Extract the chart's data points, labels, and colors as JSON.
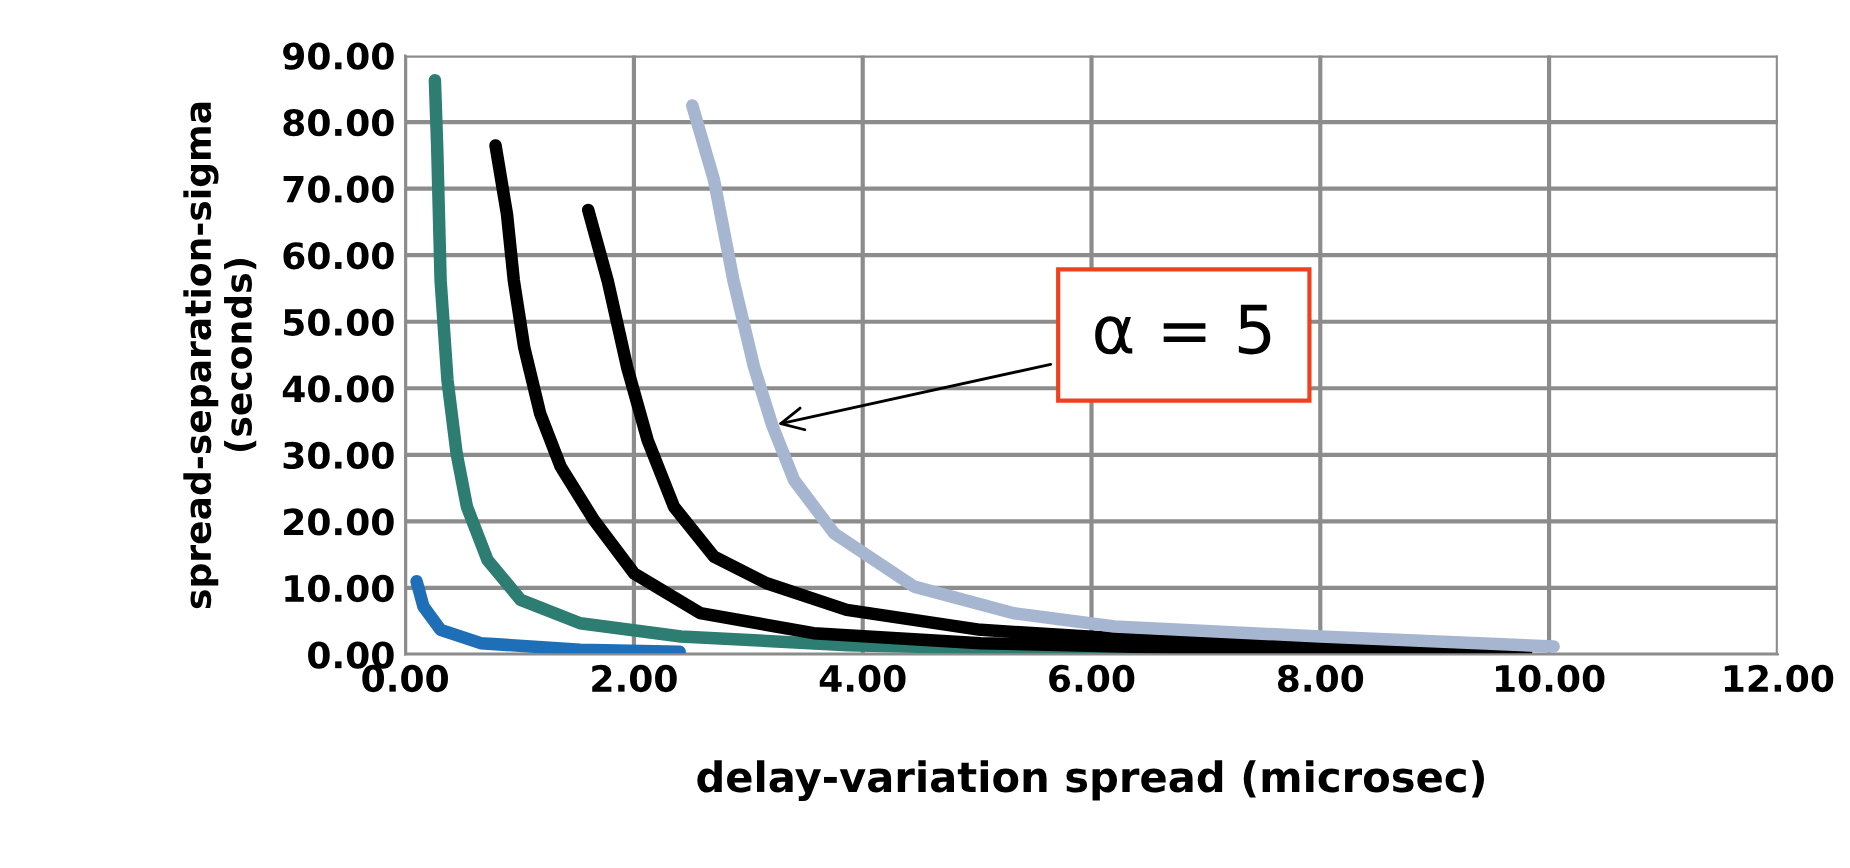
{
  "chart_data": {
    "type": "line",
    "xlabel": "delay-variation spread (microsec)",
    "ylabel": "spread-separation-sigma\n(seconds)",
    "xlim": [
      0,
      12
    ],
    "ylim": [
      0,
      90
    ],
    "xticks": [
      {
        "value": 0,
        "label": "0.00"
      },
      {
        "value": 2,
        "label": "2.00"
      },
      {
        "value": 4,
        "label": "4.00"
      },
      {
        "value": 6,
        "label": "6.00"
      },
      {
        "value": 8,
        "label": "8.00"
      },
      {
        "value": 10,
        "label": "10.00"
      },
      {
        "value": 12,
        "label": "12.00"
      }
    ],
    "yticks": [
      {
        "value": 0,
        "label": "0.00"
      },
      {
        "value": 10,
        "label": "10.00"
      },
      {
        "value": 20,
        "label": "20.00"
      },
      {
        "value": 30,
        "label": "30.00"
      },
      {
        "value": 40,
        "label": "40.00"
      },
      {
        "value": 50,
        "label": "50.00"
      },
      {
        "value": 60,
        "label": "60.00"
      },
      {
        "value": 70,
        "label": "70.00"
      },
      {
        "value": 80,
        "label": "80.00"
      },
      {
        "value": 90,
        "label": "90.00"
      }
    ],
    "grid": true,
    "legend": false,
    "marker": "none",
    "line_style": "solid",
    "annotations": [
      {
        "text": "α = 5",
        "x": 3.21,
        "y": 34.4
      }
    ],
    "series": [
      {
        "color": "#1f6fb8",
        "x": [
          0.1,
          0.16,
          0.31,
          0.66,
          1.53,
          2.4
        ],
        "values": [
          11.0,
          7.2,
          3.7,
          1.7,
          0.7,
          0.4
        ]
      },
      {
        "color": "#2e7d72",
        "x": [
          0.26,
          0.28,
          0.31,
          0.37,
          0.45,
          0.54,
          0.72,
          1.01,
          1.53,
          2.41,
          3.87,
          6.0,
          8.5
        ],
        "values": [
          86.3,
          76.3,
          56.2,
          41.2,
          30.2,
          22.2,
          14.2,
          8.2,
          4.7,
          2.7,
          1.4,
          0.6,
          0.3
        ]
      },
      {
        "color": "#000000",
        "x": [
          0.79,
          0.89,
          0.95,
          1.04,
          1.18,
          1.36,
          1.65,
          2.0,
          2.58,
          3.57,
          5.03,
          7.0,
          9.5
        ],
        "values": [
          76.5,
          66.2,
          56.2,
          46.2,
          36.2,
          28.2,
          20.2,
          12.2,
          6.2,
          3.2,
          1.7,
          0.9,
          0.5
        ]
      },
      {
        "color": "#000000",
        "x": [
          1.6,
          1.77,
          1.94,
          2.12,
          2.35,
          2.7,
          3.16,
          3.86,
          5.03,
          6.43,
          8.0,
          9.8
        ],
        "values": [
          66.8,
          56.2,
          43.2,
          32.2,
          22.2,
          14.7,
          10.7,
          6.7,
          3.7,
          2.2,
          1.0,
          0.5
        ]
      },
      {
        "color": "#a6b6d0",
        "x": [
          2.51,
          2.7,
          2.87,
          3.05,
          3.21,
          3.4,
          3.75,
          4.45,
          5.32,
          6.2,
          8.0,
          10.04
        ],
        "values": [
          82.5,
          71.3,
          56.2,
          43.2,
          34.4,
          26.2,
          18.2,
          10.2,
          6.2,
          4.2,
          2.7,
          1.2
        ]
      }
    ]
  }
}
